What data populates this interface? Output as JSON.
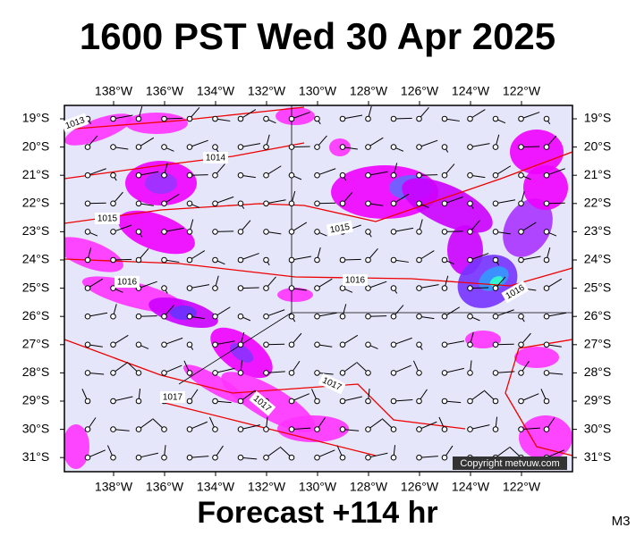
{
  "header": {
    "title": "1600 PST Wed 30 Apr 2025"
  },
  "map": {
    "longitude_labels": [
      "138°W",
      "136°W",
      "134°W",
      "132°W",
      "130°W",
      "128°W",
      "126°W",
      "124°W",
      "122°W"
    ],
    "latitude_labels": [
      "19°S",
      "20°S",
      "21°S",
      "22°S",
      "23°S",
      "24°S",
      "25°S",
      "26°S",
      "27°S",
      "28°S",
      "29°S",
      "30°S",
      "31°S"
    ],
    "isobar_labels": [
      "1013",
      "1014",
      "1015",
      "1015",
      "1016",
      "1016",
      "1016",
      "1017",
      "1017",
      "1017"
    ],
    "copyright": "Copyright metvuw.com"
  },
  "footer": {
    "forecast": "Forecast +114 hr",
    "model": "M3"
  }
}
